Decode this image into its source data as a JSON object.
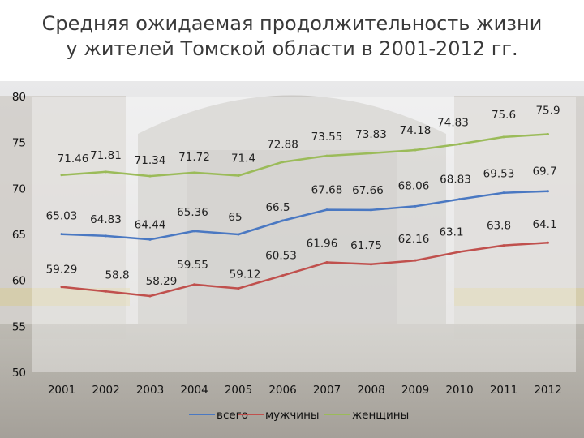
{
  "title": {
    "line1": "Средняя ожидаемая продолжительность жизни",
    "line2": "у жителей Томской области в 2001-2012 гг."
  },
  "colors": {
    "vsego": "#4a78c2",
    "muzhchiny": "#c0504d",
    "zhenshchiny": "#9bbb59",
    "background_photo": "#c9c4bd",
    "plot_band": "#dcdad6"
  },
  "chart_data": {
    "type": "line",
    "title": "Средняя ожидаемая продолжительность жизни у жителей Томской области в 2001-2012 гг.",
    "xlabel": "",
    "ylabel": "",
    "categories": [
      "2001",
      "2002",
      "2003",
      "2004",
      "2005",
      "2006",
      "2007",
      "2008",
      "2009",
      "2010",
      "2011",
      "2012"
    ],
    "ylim": [
      50,
      80
    ],
    "yticks": [
      50,
      55,
      60,
      65,
      70,
      75,
      80
    ],
    "grid": false,
    "legend_position": "bottom",
    "series": [
      {
        "name": "всего",
        "color": "#4a78c2",
        "values": [
          65.03,
          64.83,
          64.44,
          65.36,
          65,
          66.5,
          67.68,
          67.66,
          68.06,
          68.83,
          69.53,
          69.7
        ]
      },
      {
        "name": "мужчины",
        "color": "#c0504d",
        "values": [
          59.29,
          58.8,
          58.29,
          59.55,
          59.12,
          60.53,
          61.96,
          61.75,
          62.16,
          63.1,
          63.8,
          64.1
        ]
      },
      {
        "name": "женщины",
        "color": "#9bbb59",
        "values": [
          71.46,
          71.81,
          71.34,
          71.72,
          71.4,
          72.88,
          73.55,
          73.83,
          74.18,
          74.83,
          75.6,
          75.9
        ]
      }
    ]
  }
}
